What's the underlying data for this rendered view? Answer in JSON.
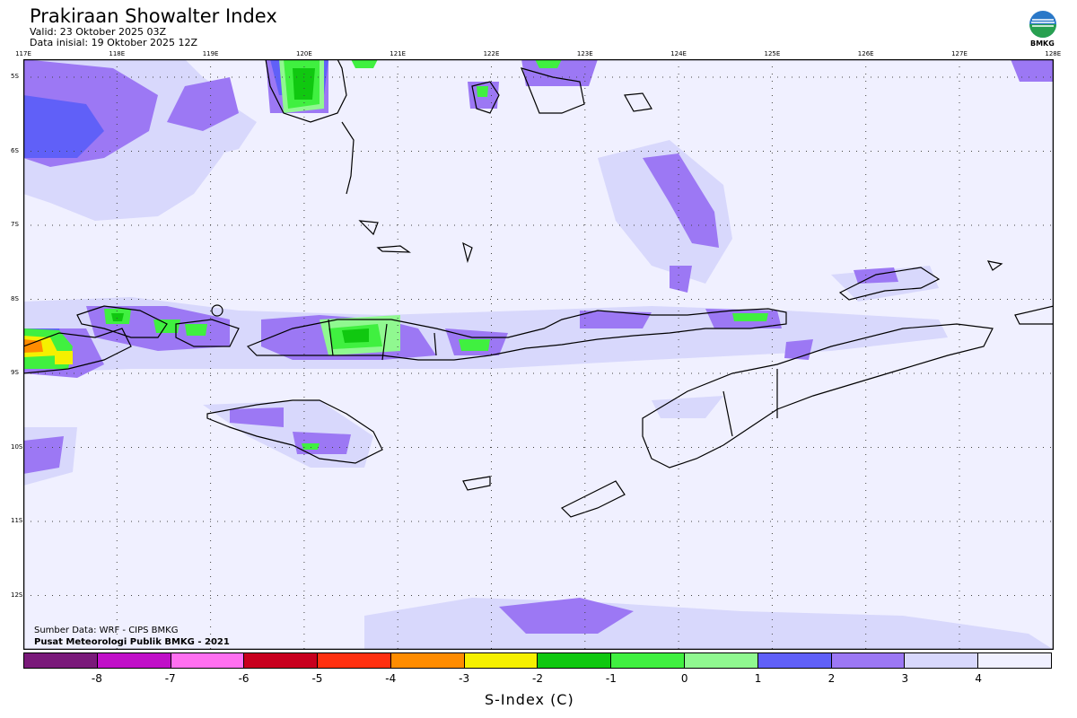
{
  "header": {
    "title": "Prakiraan Showalter Index",
    "valid": "Valid: 23 Oktober 2025 03Z",
    "init": "Data inisial: 19 Oktober 2025 12Z"
  },
  "logo": {
    "text": "BMKG",
    "icon": "bmkg-logo-icon"
  },
  "map": {
    "lon_labels": [
      "117E",
      "118E",
      "119E",
      "120E",
      "121E",
      "122E",
      "123E",
      "124E",
      "125E",
      "126E",
      "127E",
      "128E"
    ],
    "lat_labels": [
      "5S",
      "6S",
      "7S",
      "8S",
      "9S",
      "10S",
      "11S",
      "12S"
    ],
    "background_color": "#f0f0ff"
  },
  "footer": {
    "source": "Sumber Data: WRF - CIPS BMKG",
    "credit": "Pusat Meteorologi Publik BMKG - 2021"
  },
  "colorbar": {
    "colors": [
      "#7a1a7a",
      "#c010c8",
      "#ff70f0",
      "#c8001e",
      "#ff3010",
      "#ff8c00",
      "#f5f000",
      "#10c810",
      "#40f040",
      "#90f890",
      "#6060f8",
      "#9c78f4",
      "#d8d8fc",
      "#f0f0ff"
    ],
    "ticks": [
      "-8",
      "-7",
      "-6",
      "-5",
      "-4",
      "-3",
      "-2",
      "-1",
      "0",
      "1",
      "2",
      "3",
      "4"
    ],
    "title": "S-Index (C)"
  }
}
